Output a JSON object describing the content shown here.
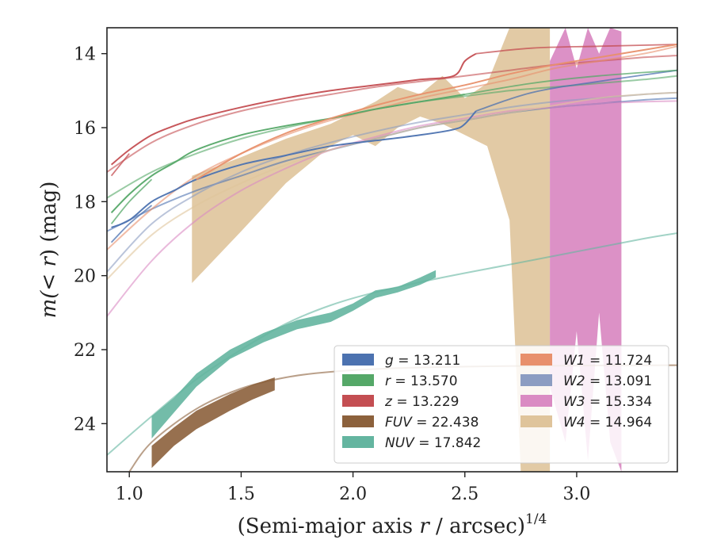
{
  "chart_data": {
    "type": "line",
    "xlabel": "(Semi-major axis r / arcsec)^1/4",
    "xlabel_parts": {
      "pre": "(Semi-major axis ",
      "var": "r",
      "post": " / arcsec)",
      "sup": "1/4"
    },
    "ylabel": "m(<r) (mag)",
    "ylabel_parts": {
      "pre": "m(",
      "mid": "< r",
      "post": ") (mag)"
    },
    "xlim": [
      0.9,
      3.45
    ],
    "ylim": [
      25.3,
      13.3
    ],
    "y_inverted": true,
    "grid": false,
    "legend_position": "lower-right",
    "xticks": [
      1.0,
      1.5,
      2.0,
      2.5,
      3.0
    ],
    "xtick_labels": [
      "1.0",
      "1.5",
      "2.0",
      "2.5",
      "3.0"
    ],
    "yticks": [
      14,
      16,
      18,
      20,
      22,
      24
    ],
    "ytick_labels": [
      "14",
      "16",
      "18",
      "20",
      "22",
      "24"
    ],
    "series": [
      {
        "name": "g",
        "legend_label": "g = 13.211",
        "color": "#4c72b0",
        "model": {
          "x": [
            0.9,
            1.1,
            1.3,
            1.5,
            1.7,
            1.9,
            2.1,
            2.3,
            2.5,
            2.7,
            2.9,
            3.1,
            3.3,
            3.45
          ],
          "y": [
            18.8,
            18.2,
            17.7,
            17.3,
            16.9,
            16.6,
            16.3,
            16.0,
            15.8,
            15.6,
            15.45,
            15.35,
            15.25,
            15.2
          ]
        },
        "data": {
          "x": [
            0.92,
            1.0,
            1.1,
            1.2,
            1.3,
            1.5,
            1.7,
            1.9,
            2.1,
            2.3,
            2.45,
            2.5,
            2.55
          ],
          "y": [
            18.7,
            18.5,
            18.0,
            17.7,
            17.4,
            17.0,
            16.75,
            16.5,
            16.35,
            16.2,
            16.05,
            15.9,
            15.55
          ]
        },
        "data_alt": {
          "x": [
            2.55,
            2.8,
            3.1,
            3.45
          ],
          "y": [
            15.55,
            15.05,
            14.75,
            14.45
          ]
        },
        "data_start": {
          "x": [
            0.92,
            1.0,
            1.1
          ],
          "y": [
            19.1,
            18.6,
            18.1
          ]
        }
      },
      {
        "name": "r",
        "legend_label": "r = 13.570",
        "color": "#55a868",
        "model": {
          "x": [
            0.9,
            1.1,
            1.3,
            1.5,
            1.7,
            1.9,
            2.1,
            2.3,
            2.5,
            2.7,
            2.9,
            3.1,
            3.3,
            3.45
          ],
          "y": [
            17.9,
            17.2,
            16.7,
            16.3,
            16.0,
            15.75,
            15.5,
            15.3,
            15.15,
            15.0,
            14.9,
            14.8,
            14.7,
            14.6
          ]
        },
        "data": {
          "x": [
            0.92,
            1.0,
            1.1,
            1.2,
            1.3,
            1.5,
            1.7,
            1.9,
            2.1,
            2.3,
            2.5
          ],
          "y": [
            18.3,
            17.8,
            17.3,
            16.95,
            16.6,
            16.2,
            15.95,
            15.75,
            15.5,
            15.3,
            15.1
          ]
        },
        "data_alt": {
          "x": [
            2.5,
            2.8,
            3.1,
            3.45
          ],
          "y": [
            15.1,
            14.8,
            14.6,
            14.45
          ]
        },
        "data_start": {
          "x": [
            0.92,
            1.0,
            1.1
          ],
          "y": [
            18.6,
            18.0,
            17.4
          ]
        }
      },
      {
        "name": "z",
        "legend_label": "z = 13.229",
        "color": "#c44e52",
        "model": {
          "x": [
            0.9,
            1.1,
            1.3,
            1.5,
            1.7,
            1.9,
            2.1,
            2.3,
            2.5,
            2.7,
            2.9,
            3.1,
            3.3,
            3.45
          ],
          "y": [
            17.2,
            16.4,
            15.9,
            15.55,
            15.3,
            15.1,
            14.9,
            14.75,
            14.6,
            14.45,
            14.3,
            14.2,
            14.1,
            14.05
          ]
        },
        "data": {
          "x": [
            0.92,
            1.0,
            1.1,
            1.2,
            1.3,
            1.5,
            1.7,
            1.9,
            2.1,
            2.3,
            2.45,
            2.5,
            2.55
          ],
          "y": [
            17.0,
            16.6,
            16.2,
            15.95,
            15.75,
            15.45,
            15.2,
            15.0,
            14.85,
            14.7,
            14.6,
            14.2,
            14.0
          ]
        },
        "data_alt": {
          "x": [
            2.55,
            2.8,
            3.1,
            3.45
          ],
          "y": [
            14.0,
            13.85,
            13.8,
            13.75
          ]
        },
        "data_start": {
          "x": [
            0.92,
            1.0
          ],
          "y": [
            17.3,
            16.7
          ]
        }
      },
      {
        "name": "FUV",
        "legend_label": "FUV = 22.438",
        "color": "#8c613c",
        "model": {
          "x": [
            1.0,
            1.1,
            1.3,
            1.5,
            1.7,
            1.9,
            2.2,
            2.6,
            3.0,
            3.45
          ],
          "y": [
            25.3,
            24.5,
            23.6,
            23.05,
            22.75,
            22.6,
            22.5,
            22.45,
            22.43,
            22.42
          ]
        },
        "band": {
          "x": [
            1.1,
            1.2,
            1.3,
            1.45,
            1.55,
            1.65
          ],
          "y_upper": [
            24.6,
            24.1,
            23.65,
            23.2,
            22.95,
            22.75
          ],
          "y_lower": [
            25.2,
            24.6,
            24.15,
            23.65,
            23.35,
            23.1
          ]
        }
      },
      {
        "name": "NUV",
        "legend_label": "NUV = 17.842",
        "color": "#64b5a0",
        "model": {
          "x": [
            0.9,
            1.1,
            1.3,
            1.5,
            1.7,
            1.9,
            2.1,
            2.4,
            2.7,
            3.0,
            3.3,
            3.45
          ],
          "y": [
            24.85,
            23.8,
            22.8,
            22.0,
            21.3,
            20.8,
            20.45,
            20.05,
            19.7,
            19.35,
            19.0,
            18.85
          ]
        },
        "band": {
          "x": [
            1.1,
            1.2,
            1.3,
            1.45,
            1.6,
            1.75,
            1.9,
            2.0,
            2.1,
            2.2,
            2.3,
            2.37
          ],
          "y_upper": [
            23.8,
            23.3,
            22.65,
            22.0,
            21.55,
            21.2,
            21.0,
            20.75,
            20.4,
            20.3,
            20.05,
            19.85
          ],
          "y_lower": [
            24.4,
            23.7,
            23.0,
            22.25,
            21.8,
            21.45,
            21.25,
            20.95,
            20.6,
            20.45,
            20.25,
            20.05
          ]
        }
      },
      {
        "name": "W1",
        "legend_label": "W1 = 11.724",
        "color": "#e8906c",
        "model": {
          "x": [
            0.9,
            1.1,
            1.3,
            1.5,
            1.7,
            1.9,
            2.1,
            2.3,
            2.5,
            2.7,
            2.9,
            3.1,
            3.3,
            3.45
          ],
          "y": [
            19.3,
            18.2,
            17.3,
            16.7,
            16.2,
            15.8,
            15.5,
            15.2,
            14.95,
            14.7,
            14.4,
            14.2,
            14.0,
            13.8
          ]
        },
        "data": {
          "x": [
            1.3,
            1.5,
            1.7,
            1.9,
            2.1,
            2.3,
            2.5,
            2.7,
            2.9,
            3.1,
            3.3,
            3.45
          ],
          "y": [
            17.4,
            16.7,
            16.15,
            15.75,
            15.4,
            15.1,
            14.85,
            14.55,
            14.3,
            14.1,
            13.9,
            13.75
          ]
        }
      },
      {
        "name": "W2",
        "legend_label": "W2 = 13.091",
        "color": "#8c9dc2",
        "model": {
          "x": [
            0.9,
            1.1,
            1.3,
            1.5,
            1.7,
            1.9,
            2.1,
            2.3,
            2.5,
            2.7,
            2.9,
            3.1,
            3.3,
            3.45
          ],
          "y": [
            19.9,
            18.6,
            17.8,
            17.2,
            16.75,
            16.4,
            16.1,
            15.85,
            15.65,
            15.45,
            15.3,
            15.2,
            15.1,
            15.05
          ]
        }
      },
      {
        "name": "W3",
        "legend_label": "W3 = 15.334",
        "color": "#da8bc3",
        "model": {
          "x": [
            0.9,
            1.1,
            1.3,
            1.5,
            1.7,
            1.9,
            2.1,
            2.3,
            2.5,
            2.7,
            2.9,
            3.1,
            3.3,
            3.45
          ],
          "y": [
            21.1,
            19.6,
            18.5,
            17.7,
            17.1,
            16.6,
            16.25,
            15.95,
            15.75,
            15.55,
            15.45,
            15.35,
            15.3,
            15.28
          ]
        },
        "band": {
          "x": [
            2.88,
            2.95,
            3.0,
            3.05,
            3.1,
            3.15,
            3.2
          ],
          "y_upper": [
            14.2,
            13.3,
            14.4,
            13.3,
            14.0,
            13.3,
            13.4
          ],
          "y_lower": [
            23.0,
            24.5,
            21.5,
            25.0,
            21.0,
            24.5,
            25.3
          ]
        }
      },
      {
        "name": "W4",
        "legend_label": "W4 = 14.964",
        "color": "#dfc49b",
        "model": {
          "x": [
            0.9,
            1.1,
            1.3,
            1.5,
            1.7,
            1.9,
            2.1,
            2.3,
            2.5,
            2.7,
            2.9,
            3.1,
            3.3,
            3.45
          ],
          "y": [
            20.1,
            18.9,
            18.1,
            17.5,
            17.0,
            16.6,
            16.3,
            16.0,
            15.8,
            15.6,
            15.4,
            15.2,
            15.1,
            15.05
          ]
        },
        "band": {
          "x": [
            1.28,
            1.5,
            1.7,
            1.9,
            2.0,
            2.1,
            2.2,
            2.3,
            2.4,
            2.5,
            2.6,
            2.7,
            2.75,
            2.8,
            2.88
          ],
          "y_upper": [
            17.3,
            16.8,
            16.3,
            15.9,
            15.6,
            15.3,
            14.9,
            15.1,
            14.6,
            15.2,
            14.8,
            13.3,
            13.3,
            13.3,
            13.3
          ],
          "y_lower": [
            20.2,
            18.8,
            17.5,
            16.5,
            16.2,
            16.5,
            16.0,
            15.7,
            15.9,
            16.2,
            16.5,
            18.5,
            25.3,
            25.3,
            25.3
          ]
        }
      }
    ],
    "legend": [
      {
        "name": "g",
        "value": "13.211"
      },
      {
        "name": "r",
        "value": "13.570"
      },
      {
        "name": "z",
        "value": "13.229"
      },
      {
        "name": "FUV",
        "value": "22.438"
      },
      {
        "name": "NUV",
        "value": "17.842"
      },
      {
        "name": "W1",
        "value": "11.724"
      },
      {
        "name": "W2",
        "value": "13.091"
      },
      {
        "name": "W3",
        "value": "15.334"
      },
      {
        "name": "W4",
        "value": "14.964"
      }
    ]
  }
}
